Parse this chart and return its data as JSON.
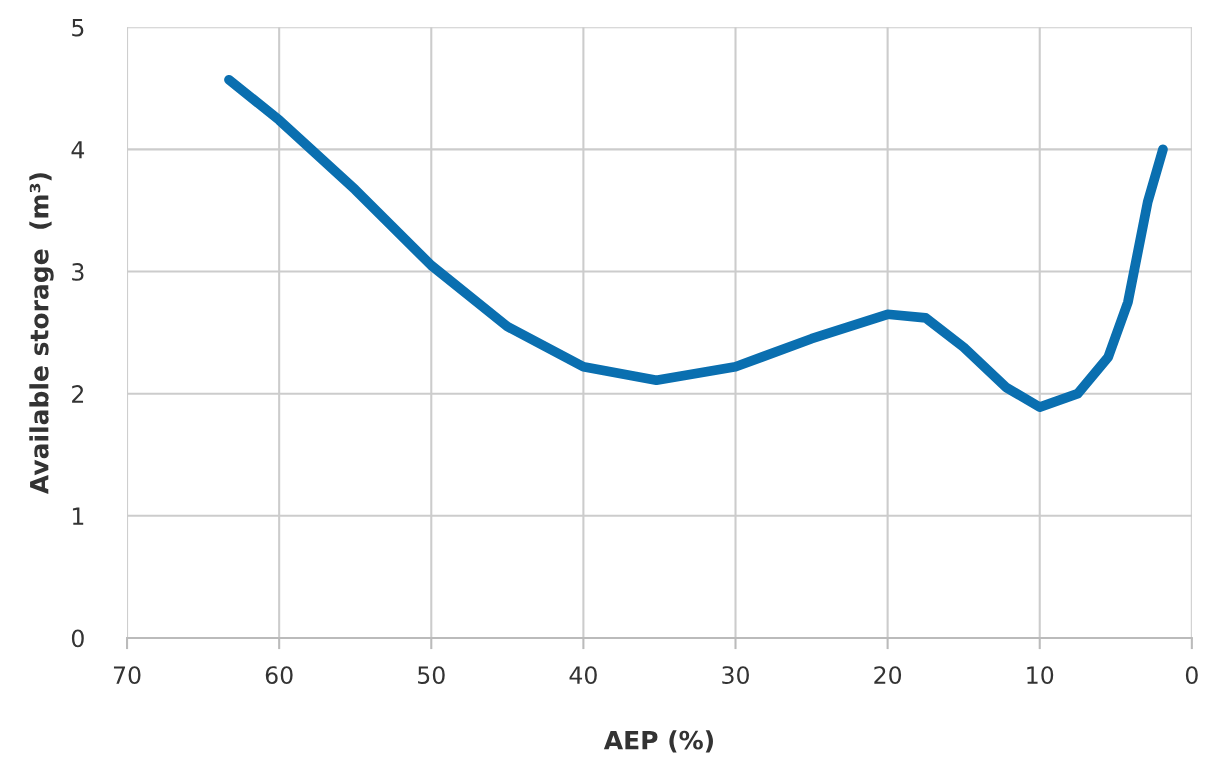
{
  "chart_data": {
    "type": "line",
    "xlabel": "AEP (%)",
    "ylabel": "Available storage  (m³)",
    "xlim": [
      70,
      0
    ],
    "xticks": [
      70,
      60,
      50,
      40,
      30,
      20,
      10,
      0
    ],
    "ylim": [
      0,
      5
    ],
    "yticks": [
      0,
      1,
      2,
      3,
      4,
      5
    ],
    "grid": true,
    "marker": "none",
    "line_style": "solid",
    "series": [
      {
        "color": "#0a6fb0",
        "x": [
          63.3,
          60,
          55,
          50,
          45,
          40,
          35.2,
          30,
          25,
          20,
          17.5,
          15,
          12.2,
          10,
          7.5,
          5.5,
          4.2,
          2.9,
          1.9
        ],
        "values": [
          4.57,
          4.24,
          3.67,
          3.05,
          2.55,
          2.22,
          2.11,
          2.22,
          2.45,
          2.65,
          2.62,
          2.38,
          2.05,
          1.89,
          2.0,
          2.3,
          2.75,
          3.57,
          4.0
        ]
      }
    ]
  }
}
